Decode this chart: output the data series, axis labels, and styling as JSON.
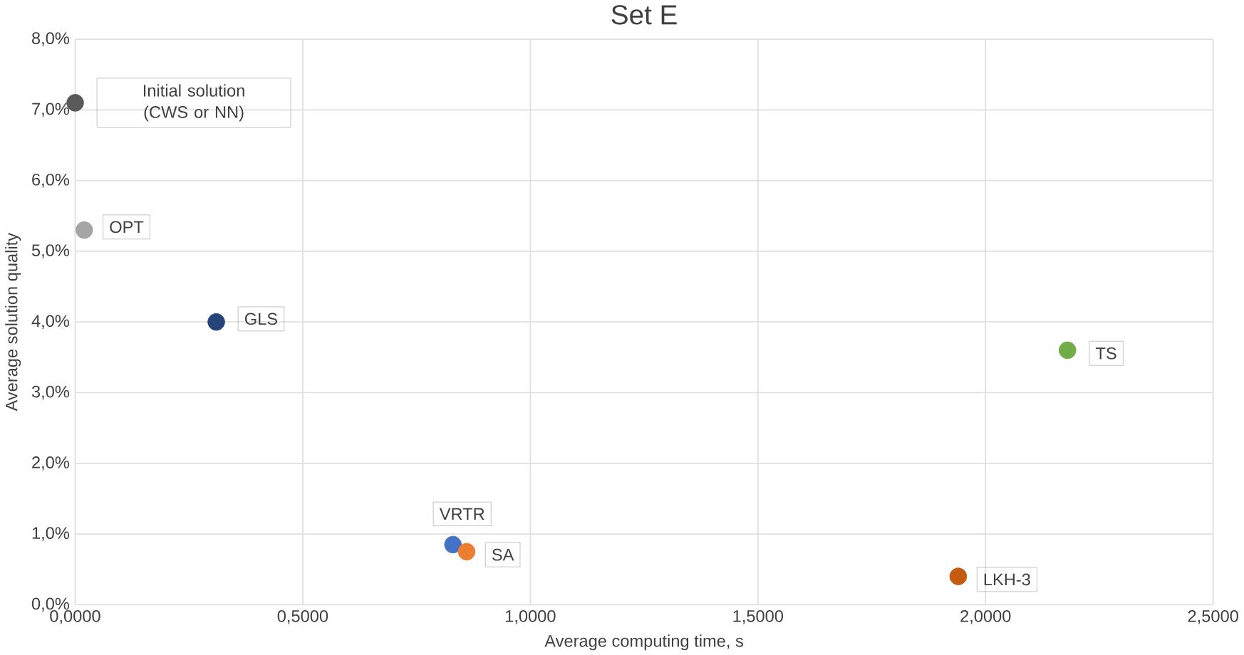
{
  "chart_data": {
    "type": "scatter",
    "title": "Set E",
    "xlabel": "Average computing time, s",
    "ylabel": "Average solution quality",
    "xlim": [
      0,
      2.5
    ],
    "xticks": [
      {
        "value": 0,
        "label": "0,0000"
      },
      {
        "value": 0.5,
        "label": "0,5000"
      },
      {
        "value": 1,
        "label": "1,0000"
      },
      {
        "value": 1.5,
        "label": "1,5000"
      },
      {
        "value": 2,
        "label": "2,0000"
      },
      {
        "value": 2.5,
        "label": "2,5000"
      }
    ],
    "ylim": [
      0,
      8
    ],
    "yticks": [
      {
        "value": 0,
        "label": "0,0%"
      },
      {
        "value": 1,
        "label": "1,0%"
      },
      {
        "value": 2,
        "label": "2,0%"
      },
      {
        "value": 3,
        "label": "3,0%"
      },
      {
        "value": 4,
        "label": "4,0%"
      },
      {
        "value": 5,
        "label": "5,0%"
      },
      {
        "value": 6,
        "label": "6,0%"
      },
      {
        "value": 7,
        "label": "7,0%"
      },
      {
        "value": 8,
        "label": "8,0%"
      }
    ],
    "grid": true,
    "marker": "circle",
    "legend": false,
    "series": [
      {
        "name": "Initial solution (CWS or NN)",
        "color": "#595959",
        "x": [
          0.0
        ],
        "values": [
          7.1
        ]
      },
      {
        "name": "OPT",
        "color": "#a5a5a5",
        "x": [
          0.02
        ],
        "values": [
          5.3
        ]
      },
      {
        "name": "GLS",
        "color": "#264478",
        "x": [
          0.31
        ],
        "values": [
          4.0
        ]
      },
      {
        "name": "VRTR",
        "color": "#4472c4",
        "x": [
          0.83
        ],
        "values": [
          0.85
        ]
      },
      {
        "name": "SA",
        "color": "#ed7d31",
        "x": [
          0.86
        ],
        "values": [
          0.75
        ]
      },
      {
        "name": "LKH-3",
        "color": "#c55a11",
        "x": [
          1.94
        ],
        "values": [
          0.4
        ]
      },
      {
        "name": "TS",
        "color": "#70ad47",
        "x": [
          2.18
        ],
        "values": [
          3.6
        ]
      }
    ]
  }
}
